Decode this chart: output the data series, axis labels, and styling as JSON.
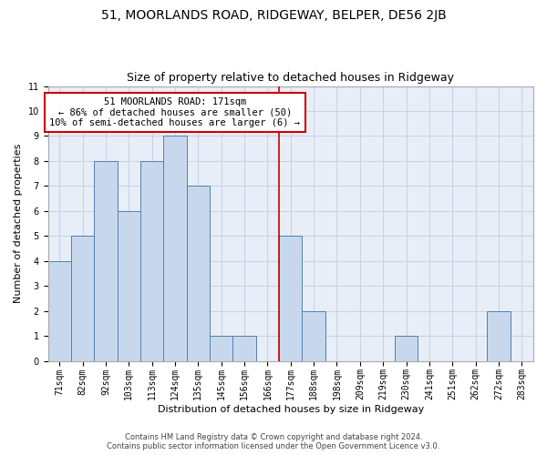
{
  "title": "51, MOORLANDS ROAD, RIDGEWAY, BELPER, DE56 2JB",
  "subtitle": "Size of property relative to detached houses in Ridgeway",
  "xlabel": "Distribution of detached houses by size in Ridgeway",
  "ylabel": "Number of detached properties",
  "categories": [
    "71sqm",
    "82sqm",
    "92sqm",
    "103sqm",
    "113sqm",
    "124sqm",
    "135sqm",
    "145sqm",
    "156sqm",
    "166sqm",
    "177sqm",
    "188sqm",
    "198sqm",
    "209sqm",
    "219sqm",
    "230sqm",
    "241sqm",
    "251sqm",
    "262sqm",
    "272sqm",
    "283sqm"
  ],
  "values": [
    4,
    5,
    8,
    6,
    8,
    9,
    7,
    1,
    1,
    0,
    5,
    2,
    0,
    0,
    0,
    1,
    0,
    0,
    0,
    2,
    0
  ],
  "bar_color": "#c8d8ec",
  "bar_edge_color": "#5080b0",
  "grid_color": "#c8d4e4",
  "background_color": "#e8eef8",
  "vline_x": 9.5,
  "vline_color": "#cc0000",
  "annotation_line1": "51 MOORLANDS ROAD: 171sqm",
  "annotation_line2": "← 86% of detached houses are smaller (50)",
  "annotation_line3": "10% of semi-detached houses are larger (6) →",
  "annotation_box_color": "#cc0000",
  "ylim": [
    0,
    11
  ],
  "yticks": [
    0,
    1,
    2,
    3,
    4,
    5,
    6,
    7,
    8,
    9,
    10,
    11
  ],
  "footer_line1": "Contains HM Land Registry data © Crown copyright and database right 2024.",
  "footer_line2": "Contains public sector information licensed under the Open Government Licence v3.0.",
  "title_fontsize": 10,
  "subtitle_fontsize": 9,
  "tick_fontsize": 7,
  "ylabel_fontsize": 8,
  "xlabel_fontsize": 8,
  "annotation_fontsize": 7.5,
  "footer_fontsize": 6
}
